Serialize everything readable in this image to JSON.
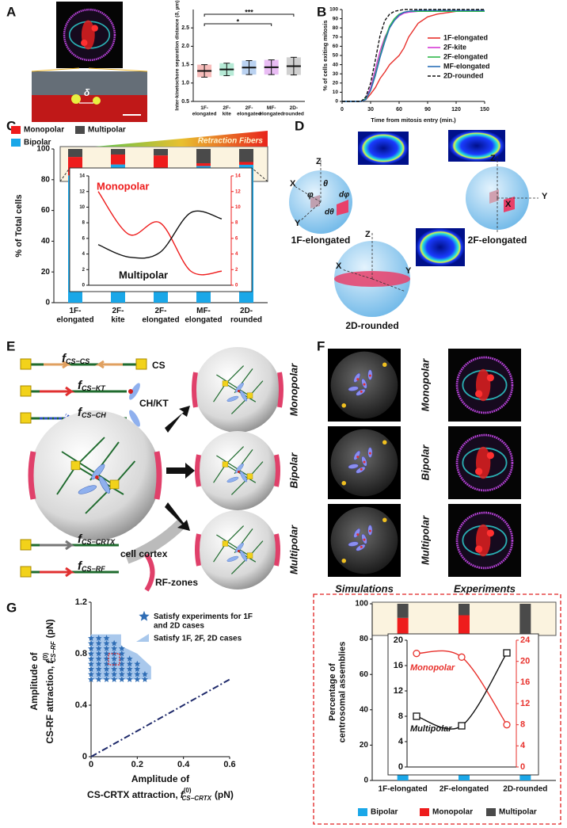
{
  "panel_letters": [
    "A",
    "B",
    "C",
    "D",
    "E",
    "F",
    "G"
  ],
  "chart_data": [
    {
      "type": "dot",
      "ylabel": "Inter-kinetochore separation distance (δ, µm)",
      "categories": [
        "1F-\nelongated",
        "2F-\nkite",
        "2F-\nelongated",
        "MF-\nelongated",
        "2D-\nrounded"
      ],
      "colors": [
        "#e8413c",
        "#2fc48a",
        "#3a7fd6",
        "#c040e0",
        "#777777"
      ],
      "values": [
        1.33,
        1.37,
        1.42,
        1.43,
        1.46
      ],
      "errors": [
        0.17,
        0.17,
        0.19,
        0.2,
        0.24
      ],
      "ylim": [
        0.5,
        3.0
      ],
      "yticks": [
        {
          "value": 0.5,
          "label": "0.5"
        },
        {
          "value": 1,
          "label": "1.0"
        },
        {
          "value": 1.5,
          "label": "1.5"
        },
        {
          "value": 2,
          "label": "2.0"
        },
        {
          "value": 2.5,
          "label": "2.5"
        }
      ],
      "annotations": [
        "***",
        "*"
      ],
      "scale_label": "δ"
    },
    {
      "type": "line",
      "xlabel": "Time from mitosis entry (min.)",
      "ylabel": "% of cells exiting mitosis",
      "x": [
        0,
        20,
        25,
        30,
        35,
        40,
        45,
        50,
        55,
        60,
        65,
        70,
        80,
        90,
        100,
        120,
        150
      ],
      "series": [
        {
          "name": "1F-elongated",
          "color": "#e8312c",
          "values": [
            0,
            0,
            2,
            8,
            15,
            25,
            32,
            40,
            45,
            50,
            58,
            70,
            85,
            92,
            95,
            98,
            98
          ]
        },
        {
          "name": "2F-kite",
          "color": "#d63ad6",
          "values": [
            0,
            0,
            3,
            15,
            35,
            55,
            70,
            80,
            88,
            93,
            96,
            97,
            98,
            98,
            98,
            98,
            98
          ]
        },
        {
          "name": "2F-elongated",
          "color": "#2fb84a",
          "values": [
            0,
            0,
            3,
            12,
            30,
            50,
            68,
            82,
            90,
            95,
            97,
            98,
            98,
            98,
            98,
            98,
            98
          ]
        },
        {
          "name": "MF-elongated",
          "color": "#2a6fb8",
          "values": [
            0,
            0,
            2,
            12,
            28,
            48,
            65,
            80,
            88,
            94,
            97,
            98,
            99,
            99,
            99,
            99,
            99
          ]
        },
        {
          "name": "2D-rounded",
          "color": "#111111",
          "dash": true,
          "values": [
            0,
            0,
            5,
            20,
            45,
            72,
            88,
            95,
            98,
            99,
            100,
            100,
            100,
            100,
            100,
            100,
            100
          ]
        }
      ],
      "xlim": [
        0,
        150
      ],
      "xticks": [
        0,
        30,
        60,
        90,
        120,
        150
      ],
      "ylim": [
        0,
        100
      ],
      "yticks": [
        0,
        10,
        20,
        30,
        40,
        50,
        60,
        70,
        80,
        90,
        100
      ]
    },
    {
      "type": "stacked-bar",
      "ylabel": "% of Total cells",
      "annotation": "Retraction Fibers",
      "categories": [
        "1F-\nelongated",
        "2F-\nkite",
        "2F-\nelongated",
        "MF-\nelongated",
        "2D-\nrounded"
      ],
      "series": [
        {
          "name": "Bipolar",
          "color": "#1aa7e8",
          "values": [
            82.8,
            89.9,
            87.8,
            88.9,
            89.7
          ]
        },
        {
          "name": "Monopolar",
          "color": "#ee1c1c",
          "values": [
            12,
            6.5,
            8,
            1.8,
            1.8
          ]
        },
        {
          "name": "Multipolar",
          "color": "#4a4a4a",
          "values": [
            5.2,
            3.6,
            4.2,
            9.3,
            8.5
          ]
        }
      ],
      "ylim": [
        0,
        100
      ],
      "yticks": [
        0,
        20,
        40,
        60,
        80,
        100
      ],
      "inset": {
        "type": "line",
        "series": [
          {
            "name": "Monopolar",
            "color": "#ee1c1c",
            "axis": "y2",
            "values": [
              12,
              6.5,
              8,
              1.8,
              1.8
            ]
          },
          {
            "name": "Multipolar",
            "color": "#111111",
            "values": [
              5.2,
              3.6,
              4.2,
              9.3,
              8.5
            ]
          }
        ],
        "ylim": [
          0,
          14
        ],
        "yticks": [
          0,
          2,
          4,
          6,
          8,
          10,
          12,
          14
        ],
        "y2lim": [
          0,
          14
        ],
        "y2ticks": [
          0,
          2,
          4,
          6,
          8,
          10,
          12,
          14
        ]
      }
    },
    {
      "type": "scatter",
      "series": [
        {
          "name": "Satisfy experiments for 1F\nand 2D cases",
          "color": "#2f6db5",
          "x": [
            0,
            0,
            0,
            0,
            0,
            0,
            0,
            0,
            0,
            0.033,
            0.033,
            0.033,
            0.033,
            0.033,
            0.033,
            0.033,
            0.033,
            0.033,
            0.067,
            0.067,
            0.067,
            0.067,
            0.067,
            0.067,
            0.067,
            0.067,
            0.067,
            0.1,
            0.1,
            0.1,
            0.1,
            0.1,
            0.1,
            0.1,
            0.1,
            0.133,
            0.133,
            0.133,
            0.133,
            0.133,
            0.133,
            0.133,
            0.167,
            0.167,
            0.167,
            0.167,
            0.167,
            0.2,
            0.2,
            0.2,
            0.2,
            0.233,
            0.233
          ],
          "y": [
            0.6,
            0.64,
            0.68,
            0.72,
            0.76,
            0.8,
            0.84,
            0.88,
            0.92,
            0.6,
            0.64,
            0.68,
            0.72,
            0.76,
            0.8,
            0.84,
            0.88,
            0.92,
            0.6,
            0.64,
            0.68,
            0.72,
            0.76,
            0.8,
            0.84,
            0.88,
            0.92,
            0.6,
            0.64,
            0.68,
            0.72,
            0.76,
            0.8,
            0.84,
            0.88,
            0.6,
            0.64,
            0.68,
            0.72,
            0.76,
            0.8,
            0.84,
            0.6,
            0.64,
            0.68,
            0.72,
            0.76,
            0.6,
            0.64,
            0.68,
            0.72,
            0.6,
            0.64
          ]
        }
      ],
      "region": {
        "name": "Satisfy 1F, 2F, 2D cases",
        "color": "#a9c8ec",
        "x": [
          0,
          0.13,
          0.13,
          0.2,
          0.26,
          0.26,
          0
        ],
        "y": [
          0.95,
          0.95,
          0.86,
          0.8,
          0.7,
          0.6,
          0.6
        ]
      },
      "line": {
        "color": "#1f2a6b",
        "x": [
          0,
          0.6
        ],
        "y": [
          0,
          0.6
        ]
      },
      "xlim": [
        0,
        0.6
      ],
      "xticks": [
        0,
        0.2,
        0.4,
        0.6
      ],
      "ylim": [
        0,
        1.2
      ],
      "yticks": [
        0,
        0.4,
        0.8,
        1.2
      ],
      "xlabel": {
        "lines": [
          "Amplitude of",
          "CS-CRTX attraction,"
        ],
        "symbol": "f",
        "sup": "(0)",
        "sub": "CS−CRTX",
        "unit": "(pN)"
      },
      "ylabel": {
        "lines": [
          "Amplitude of",
          "CS-RF attraction,"
        ],
        "symbol": "f",
        "sup": "(0)",
        "sub": "CS−RF",
        "unit": "(pN)"
      }
    },
    {
      "type": "stacked-bar",
      "ylabel": "Percentage of\ncentrosomal assemblies",
      "categories": [
        "1F-elongated",
        "2F-elongated",
        "2D-rounded"
      ],
      "series": [
        {
          "name": "Bipolar",
          "color": "#1aa7e8",
          "values": [
            70.5,
            72.7,
            74
          ]
        },
        {
          "name": "Monopolar",
          "color": "#ee1c1c",
          "values": [
            21.5,
            20.8,
            8
          ]
        },
        {
          "name": "Multipolar",
          "color": "#4a4a4a",
          "values": [
            8,
            6.5,
            18
          ]
        }
      ],
      "ylim": [
        0,
        100
      ],
      "yticks": [
        0,
        20,
        40,
        60,
        80,
        100
      ],
      "inset": {
        "type": "line",
        "series": [
          {
            "name": "Monopolar",
            "color": "#e8312c",
            "axis": "y2",
            "values": [
              21.5,
              20.8,
              8
            ]
          },
          {
            "name": "Multipolar",
            "color": "#111111",
            "values": [
              8,
              6.5,
              18
            ]
          }
        ],
        "ylim": [
          0,
          20
        ],
        "yticks": [
          0,
          4,
          8,
          12,
          16,
          20
        ],
        "y2lim": [
          0,
          24
        ],
        "y2ticks": [
          0,
          4,
          8,
          12,
          16,
          20,
          24
        ]
      }
    }
  ],
  "panels": {
    "D": {
      "axes": [
        "Z",
        "X",
        "Y"
      ],
      "angles": [
        "θ",
        "φ",
        "dφ",
        "dθ"
      ],
      "captions": [
        "1F-elongated",
        "2F-elongated",
        "2D-rounded"
      ]
    },
    "E": {
      "forces": [
        {
          "f": "f",
          "sub": "CS−CS"
        },
        {
          "f": "f",
          "sub": "CS−KT"
        },
        {
          "f": "f",
          "sub": "CS−CH"
        },
        {
          "f": "f",
          "sub": "CS−CRTX"
        },
        {
          "f": "f",
          "sub": "CS−RF"
        }
      ],
      "labels": [
        "CS",
        "CH/KT",
        "cell cortex",
        "RF-zones"
      ],
      "outcomes": [
        "Monopolar",
        "Bipolar",
        "Multipolar"
      ]
    },
    "F": {
      "rows": [
        "Monopolar",
        "Bipolar",
        "Multipolar"
      ],
      "columns": [
        "Simulations",
        "Experiments"
      ]
    }
  }
}
